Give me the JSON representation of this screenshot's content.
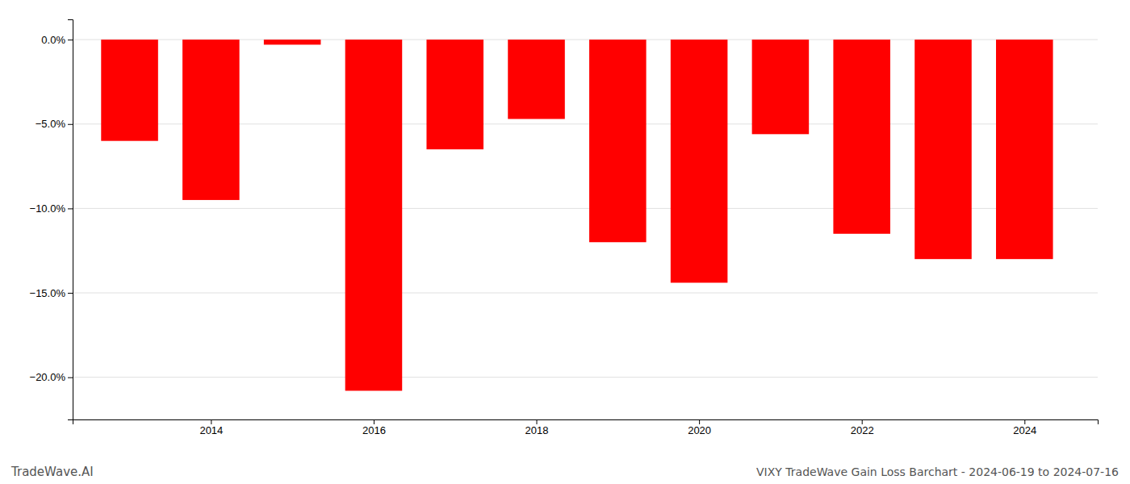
{
  "chart_data": {
    "type": "bar",
    "title": "VIXY TradeWave Gain Loss Barchart - 2024-06-19 to 2024-07-16",
    "annotations": [
      "TradeWave.AI"
    ],
    "x": [
      2013,
      2014,
      2015,
      2016,
      2017,
      2018,
      2019,
      2020,
      2021,
      2022,
      2023,
      2024
    ],
    "values": [
      -6.0,
      -9.5,
      -0.3,
      -20.8,
      -6.5,
      -4.7,
      -12.0,
      -14.4,
      -5.6,
      -11.5,
      -13.0,
      -13.0
    ],
    "color": "#ff0000",
    "xlim": [
      2012.3,
      2024.9
    ],
    "xticks": [
      2014,
      2016,
      2018,
      2020,
      2022,
      2024
    ],
    "ylim": [
      -22.5,
      1.2
    ],
    "yticks": [
      {
        "value": 0.0,
        "label": "0.0%"
      },
      {
        "value": -5.0,
        "label": "−5.0%"
      },
      {
        "value": -10.0,
        "label": "−10.0%"
      },
      {
        "value": -15.0,
        "label": "−15.0%"
      },
      {
        "value": -20.0,
        "label": "−20.0%"
      }
    ],
    "grid": true
  }
}
